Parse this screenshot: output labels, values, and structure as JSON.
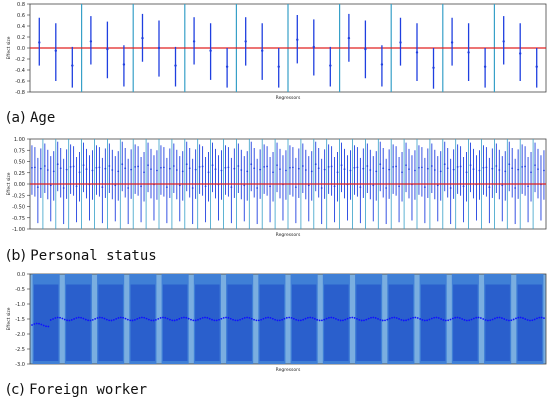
{
  "colors": {
    "interval": "#1f3fe0",
    "point": "#1f3fe0",
    "zero_line": "#e02020",
    "separator": "#37a0c8",
    "dark_band": "#2a5fcc",
    "light_band": "#7aaee0",
    "dense_point": "#1010ff"
  },
  "chart_data": [
    {
      "type": "scatter",
      "subtype": "error-bars",
      "caption_label": "(a)",
      "caption_title": "Age",
      "xlabel": "Regressors",
      "ylabel": "Effect size",
      "ylim": [
        -0.8,
        0.8
      ],
      "yticks": [
        "0.8",
        "0.6",
        "0.4",
        "0.2",
        "0.0",
        "-0.2",
        "-0.4",
        "-0.6",
        "-0.8"
      ],
      "ytick_values": [
        0.8,
        0.6,
        0.4,
        0.2,
        0.0,
        -0.2,
        -0.4,
        -0.6,
        -0.8
      ],
      "groups": 10,
      "per_group": 3,
      "points": [
        {
          "mean": 0.1,
          "low": -0.32,
          "high": 0.55
        },
        {
          "mean": -0.05,
          "low": -0.6,
          "high": 0.45
        },
        {
          "mean": -0.32,
          "low": -0.72,
          "high": 0.02
        },
        {
          "mean": 0.12,
          "low": -0.3,
          "high": 0.58
        },
        {
          "mean": -0.02,
          "low": -0.55,
          "high": 0.48
        },
        {
          "mean": -0.3,
          "low": -0.7,
          "high": 0.05
        },
        {
          "mean": 0.18,
          "low": -0.25,
          "high": 0.62
        },
        {
          "mean": 0.0,
          "low": -0.52,
          "high": 0.5
        },
        {
          "mean": -0.32,
          "low": -0.7,
          "high": 0.02
        },
        {
          "mean": 0.12,
          "low": -0.3,
          "high": 0.56
        },
        {
          "mean": -0.05,
          "low": -0.58,
          "high": 0.45
        },
        {
          "mean": -0.34,
          "low": -0.72,
          "high": 0.0
        },
        {
          "mean": 0.12,
          "low": -0.32,
          "high": 0.56
        },
        {
          "mean": -0.05,
          "low": -0.58,
          "high": 0.45
        },
        {
          "mean": -0.34,
          "low": -0.72,
          "high": 0.0
        },
        {
          "mean": 0.15,
          "low": -0.28,
          "high": 0.6
        },
        {
          "mean": 0.02,
          "low": -0.5,
          "high": 0.52
        },
        {
          "mean": -0.32,
          "low": -0.7,
          "high": 0.02
        },
        {
          "mean": 0.18,
          "low": -0.25,
          "high": 0.62
        },
        {
          "mean": -0.02,
          "low": -0.55,
          "high": 0.5
        },
        {
          "mean": -0.3,
          "low": -0.7,
          "high": 0.05
        },
        {
          "mean": 0.1,
          "low": -0.32,
          "high": 0.55
        },
        {
          "mean": -0.08,
          "low": -0.6,
          "high": 0.45
        },
        {
          "mean": -0.36,
          "low": -0.74,
          "high": 0.0
        },
        {
          "mean": 0.1,
          "low": -0.32,
          "high": 0.55
        },
        {
          "mean": -0.08,
          "low": -0.6,
          "high": 0.45
        },
        {
          "mean": -0.34,
          "low": -0.72,
          "high": 0.0
        },
        {
          "mean": 0.12,
          "low": -0.3,
          "high": 0.58
        },
        {
          "mean": -0.1,
          "low": -0.6,
          "high": 0.45
        },
        {
          "mean": -0.34,
          "low": -0.72,
          "high": 0.0
        }
      ]
    },
    {
      "type": "scatter",
      "subtype": "error-bars",
      "caption_label": "(b)",
      "caption_title": "Personal status",
      "xlabel": "Regressors",
      "ylabel": "Effect size",
      "ylim": [
        -1.0,
        1.0
      ],
      "yticks": [
        "1.00",
        "0.75",
        "0.50",
        "0.25",
        "0.00",
        "-0.25",
        "-0.50",
        "-0.75",
        "-1.00"
      ],
      "ytick_values": [
        1.0,
        0.75,
        0.5,
        0.25,
        0.0,
        -0.25,
        -0.5,
        -0.75,
        -1.0
      ],
      "groups": 40,
      "per_group": 4,
      "pattern": [
        {
          "mean": 0.4,
          "low": -0.2,
          "high": 0.9
        },
        {
          "mean": 0.35,
          "low": -0.3,
          "high": 0.8
        },
        {
          "mean": -0.05,
          "low": -0.85,
          "high": 0.6
        },
        {
          "mean": 0.3,
          "low": -0.35,
          "high": 0.75
        }
      ]
    },
    {
      "type": "scatter",
      "subtype": "dense-intervals",
      "caption_label": "(c)",
      "caption_title": "Foreign worker",
      "xlabel": "Regressors",
      "ylabel": "Effect size",
      "ylim": [
        -3.0,
        0.0
      ],
      "yticks": [
        "0.0",
        "-0.5",
        "-1.0",
        "-1.5",
        "-2.0",
        "-2.5",
        "-3.0"
      ],
      "ytick_values": [
        0.0,
        -0.5,
        -1.0,
        -1.5,
        -2.0,
        -2.5,
        -3.0
      ],
      "groups": 16,
      "mean_level": -1.5,
      "band_low": -2.9,
      "band_high": -0.35
    }
  ]
}
